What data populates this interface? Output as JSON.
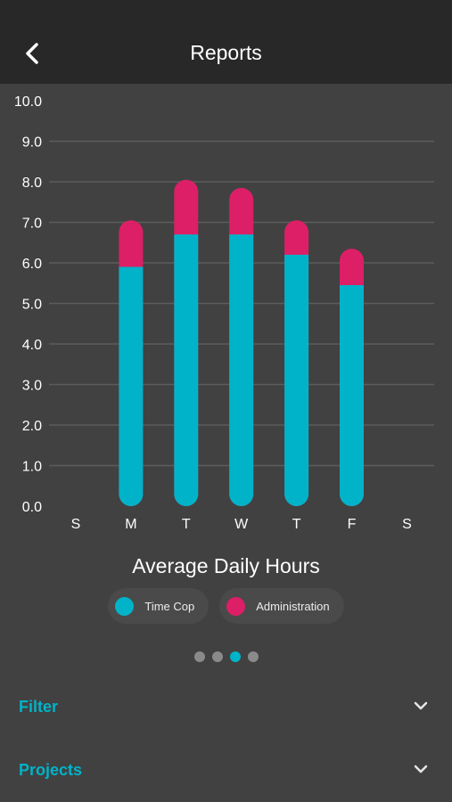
{
  "header": {
    "title": "Reports",
    "back_icon": "chevron-left-icon"
  },
  "chart_data": {
    "type": "bar",
    "stacked": true,
    "title": "Average Daily Hours",
    "categories": [
      "S",
      "M",
      "T",
      "W",
      "T",
      "F",
      "S"
    ],
    "series": [
      {
        "name": "Time Cop",
        "color": "#00b3c8",
        "values": [
          0,
          5.9,
          6.7,
          6.7,
          6.2,
          5.45,
          0
        ]
      },
      {
        "name": "Administration",
        "color": "#dc1f66",
        "values": [
          0,
          1.15,
          1.35,
          1.15,
          0.85,
          0.9,
          0
        ]
      }
    ],
    "ylim": [
      0,
      10
    ],
    "yticks": [
      "0.0",
      "1.0",
      "2.0",
      "3.0",
      "4.0",
      "5.0",
      "6.0",
      "7.0",
      "8.0",
      "9.0",
      "10.0"
    ],
    "grid": true,
    "legend_position": "bottom"
  },
  "pager": {
    "count": 4,
    "active_index": 2
  },
  "sections": [
    {
      "label": "Filter",
      "icon": "chevron-down-icon"
    },
    {
      "label": "Projects",
      "icon": "chevron-down-icon"
    }
  ],
  "colors": {
    "accent": "#00b3c8",
    "secondary": "#dc1f66",
    "background": "#414141",
    "header": "#282828"
  }
}
